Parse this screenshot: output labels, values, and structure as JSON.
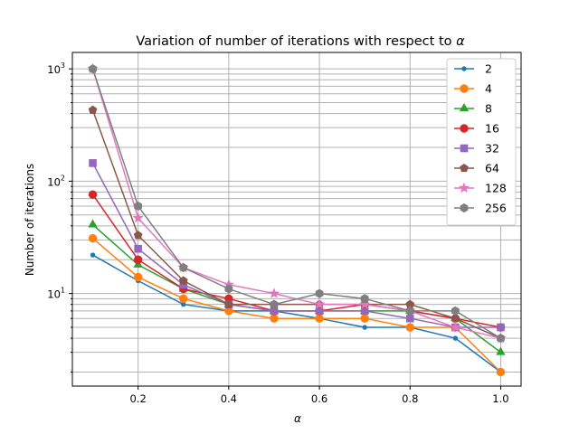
{
  "chart_data": {
    "type": "line",
    "title_prefix": "Variation of number of iterations with respect to ",
    "title_symbol": "α",
    "xlabel": "α",
    "ylabel": "Number of iterations",
    "x": [
      0.1,
      0.2,
      0.3,
      0.4,
      0.5,
      0.6,
      0.7,
      0.8,
      0.9,
      1.0
    ],
    "xlim": [
      0.055,
      1.045
    ],
    "ylim": [
      1.5,
      1400
    ],
    "yscale": "log",
    "xticks": [
      0.2,
      0.4,
      0.6,
      0.8,
      1.0
    ],
    "xtick_labels": [
      "0.2",
      "0.4",
      "0.6",
      "0.8",
      "1.0"
    ],
    "yticks": [
      {
        "value": 10,
        "label_base": "10",
        "label_exp": "1"
      },
      {
        "value": 100,
        "label_base": "10",
        "label_exp": "2"
      },
      {
        "value": 1000,
        "label_base": "10",
        "label_exp": "3"
      }
    ],
    "grid": true,
    "legend_position": "upper right",
    "series": [
      {
        "name": "2",
        "color": "#1f77b4",
        "marker": "point",
        "values": [
          22,
          13,
          8,
          7,
          7,
          6,
          5,
          5,
          4,
          2
        ]
      },
      {
        "name": "4",
        "color": "#ff7f0e",
        "marker": "circle",
        "values": [
          31,
          14,
          9,
          7,
          6,
          6,
          6,
          5,
          5,
          2
        ]
      },
      {
        "name": "8",
        "color": "#2ca02c",
        "marker": "triangle",
        "values": [
          41,
          18,
          11,
          8,
          7,
          7,
          7,
          7,
          6,
          3
        ]
      },
      {
        "name": "16",
        "color": "#d62728",
        "marker": "circle",
        "values": [
          76,
          20,
          11,
          9,
          7,
          7,
          8,
          7,
          6,
          5
        ]
      },
      {
        "name": "32",
        "color": "#9467bd",
        "marker": "square",
        "values": [
          145,
          25,
          12,
          8,
          7,
          7,
          7,
          6,
          5,
          5
        ]
      },
      {
        "name": "64",
        "color": "#8c564b",
        "marker": "pentagon",
        "values": [
          430,
          33,
          13,
          8,
          8,
          8,
          8,
          8,
          6,
          4
        ]
      },
      {
        "name": "128",
        "color": "#e377c2",
        "marker": "star",
        "values": [
          1000,
          47,
          17,
          12,
          10,
          8,
          8,
          7,
          5,
          4
        ]
      },
      {
        "name": "256",
        "color": "#7f7f7f",
        "marker": "hexagon",
        "values": [
          1000,
          60,
          17,
          11,
          8,
          10,
          9,
          7,
          7,
          4
        ]
      }
    ]
  }
}
